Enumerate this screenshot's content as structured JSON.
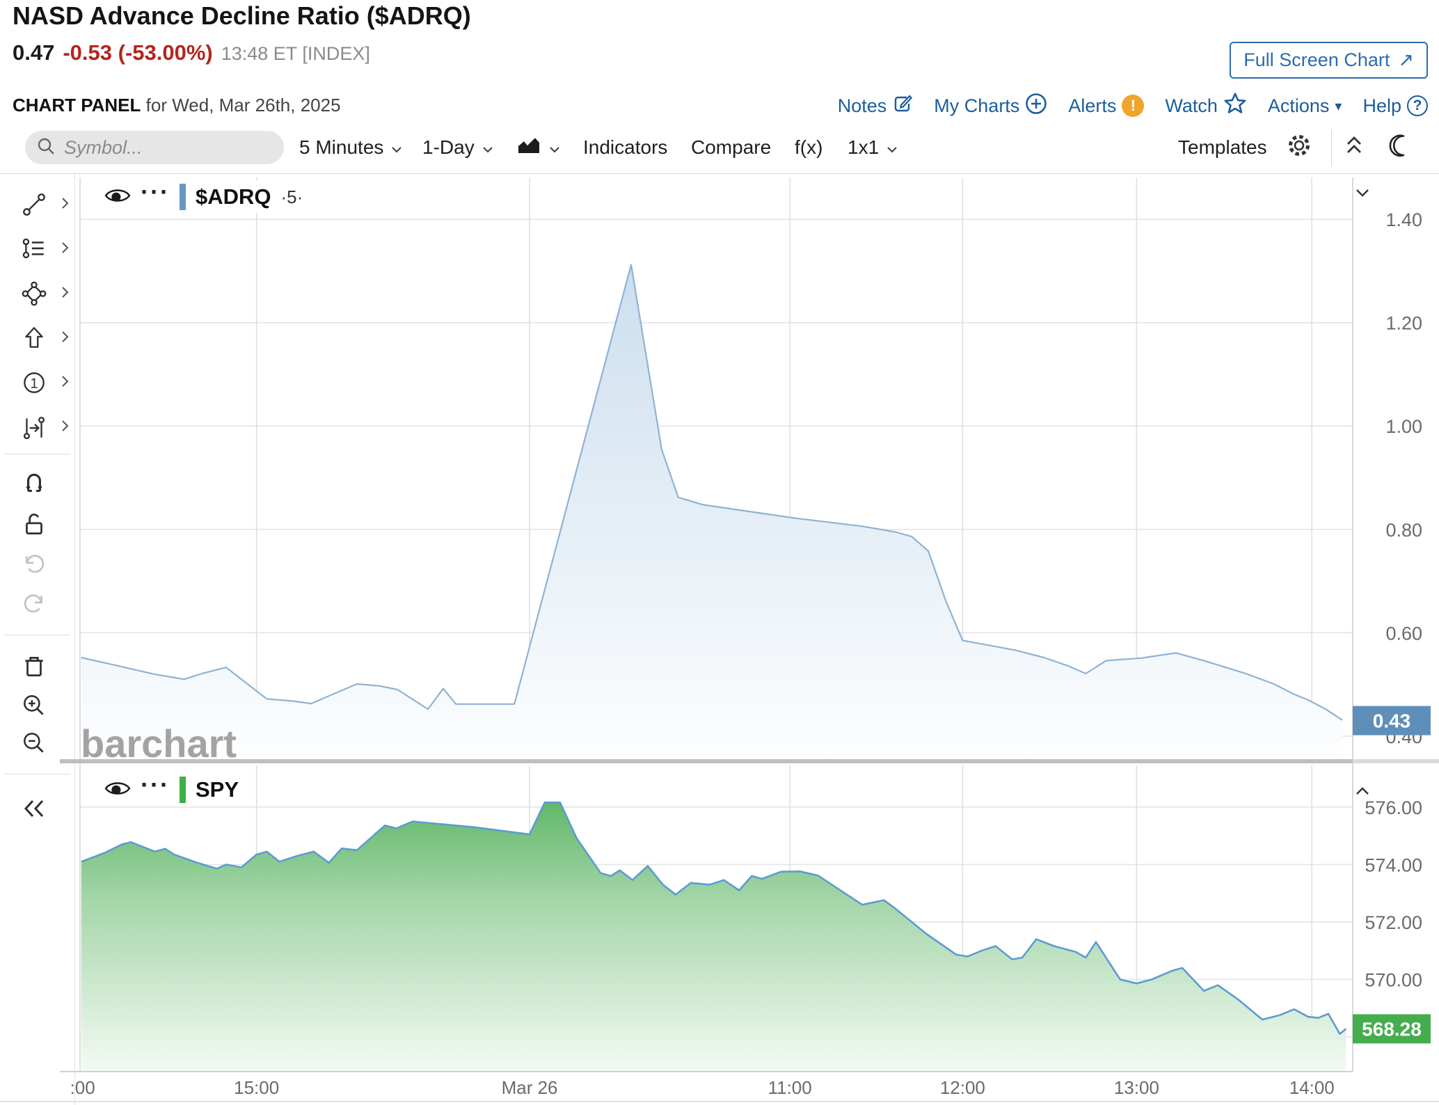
{
  "header": {
    "title": "NASD Advance Decline Ratio ($ADRQ)",
    "last": "0.47",
    "change": "-0.53 (-53.00%)",
    "quote_time": "13:48 ET [INDEX]",
    "full_screen_label": "Full Screen Chart",
    "full_screen_icon": "↗"
  },
  "panel_bar": {
    "label": "CHART PANEL",
    "date": "for Wed, Mar 26th, 2025",
    "links": [
      {
        "label": "Notes",
        "icon": "notes-icon"
      },
      {
        "label": "My Charts",
        "icon": "plus-circle-icon"
      },
      {
        "label": "Alerts",
        "icon": "alert-badge-icon",
        "glyph": "!"
      },
      {
        "label": "Watch",
        "icon": "star-icon"
      },
      {
        "label": "Actions",
        "icon": "caret-down-icon",
        "glyph": "▾"
      },
      {
        "label": "Help",
        "icon": "question-circle-icon",
        "glyph": "?"
      }
    ]
  },
  "toolbar": {
    "symbol_placeholder": "Symbol...",
    "frequency": "5 Minutes",
    "range": "1-Day",
    "indicators": "Indicators",
    "compare": "Compare",
    "fx": "f(x)",
    "grid": "1x1",
    "templates": "Templates"
  },
  "sidebar_tools": [
    "trend-line",
    "trend-channel",
    "shape",
    "arrow-annotation",
    "number-annotation",
    "measure",
    "magnet-mode",
    "unlock",
    "undo",
    "redo",
    "delete-drawings",
    "zoom-in",
    "zoom-out",
    "collapse-sidebar"
  ],
  "icon_glyphs": {
    "number_tool": "1"
  },
  "watermark": "barchart",
  "colors": {
    "negative": "#b3251e",
    "link_blue": "#1b5d9c",
    "alert_orange": "#f1a42c",
    "adrq_line": "#8fb2d4",
    "adrq_badge": "#5e8fba",
    "spy_line": "#5d9bd3",
    "spy_badge": "#45ad4e"
  },
  "x_axis": {
    "labels": [
      ":00",
      "15:00",
      "Mar 26",
      "11:00",
      "12:00",
      "13:00",
      "14:00"
    ],
    "fracs": [
      0.002,
      0.139,
      0.354,
      0.559,
      0.695,
      0.832,
      0.97
    ]
  },
  "chart_data": [
    {
      "type": "area",
      "symbol": "$ADRQ",
      "pane": "upper",
      "legend": {
        "label": "$ADRQ",
        "suffix": "·5·",
        "dots": "···",
        "color": "#6697c4"
      },
      "title": "NASD Advance Decline Ratio 5-minute",
      "ylim": [
        0.35,
        1.481
      ],
      "y_ticks": [
        {
          "v": 1.4,
          "label": "1.40"
        },
        {
          "v": 1.2,
          "label": "1.20"
        },
        {
          "v": 1.0,
          "label": "1.00"
        },
        {
          "v": 0.8,
          "label": "0.80"
        },
        {
          "v": 0.6,
          "label": "0.60"
        },
        {
          "v": 0.4,
          "label": "0.40"
        }
      ],
      "last_price": "0.43",
      "last_value": 0.43,
      "line_color": "#8fb2d4",
      "badge_color": "#5e8fba",
      "fill_stops": [
        [
          "0",
          "#c3d9ec"
        ],
        [
          "0.5",
          "#e0ebf4"
        ],
        [
          "1",
          "#fdfeff"
        ]
      ],
      "points": [
        [
          0.001,
          0.552
        ],
        [
          0.03,
          0.536
        ],
        [
          0.058,
          0.52
        ],
        [
          0.082,
          0.51
        ],
        [
          0.096,
          0.521
        ],
        [
          0.115,
          0.533
        ],
        [
          0.147,
          0.472
        ],
        [
          0.167,
          0.468
        ],
        [
          0.182,
          0.463
        ],
        [
          0.218,
          0.501
        ],
        [
          0.236,
          0.497
        ],
        [
          0.25,
          0.49
        ],
        [
          0.274,
          0.452
        ],
        [
          0.286,
          0.492
        ],
        [
          0.296,
          0.462
        ],
        [
          0.342,
          0.462
        ],
        [
          0.434,
          1.312
        ],
        [
          0.458,
          0.955
        ],
        [
          0.471,
          0.862
        ],
        [
          0.49,
          0.848
        ],
        [
          0.523,
          0.836
        ],
        [
          0.562,
          0.822
        ],
        [
          0.616,
          0.806
        ],
        [
          0.642,
          0.795
        ],
        [
          0.655,
          0.786
        ],
        [
          0.668,
          0.758
        ],
        [
          0.682,
          0.66
        ],
        [
          0.695,
          0.585
        ],
        [
          0.715,
          0.576
        ],
        [
          0.737,
          0.566
        ],
        [
          0.759,
          0.552
        ],
        [
          0.778,
          0.536
        ],
        [
          0.792,
          0.521
        ],
        [
          0.808,
          0.546
        ],
        [
          0.836,
          0.551
        ],
        [
          0.863,
          0.561
        ],
        [
          0.885,
          0.546
        ],
        [
          0.918,
          0.521
        ],
        [
          0.94,
          0.501
        ],
        [
          0.956,
          0.481
        ],
        [
          0.967,
          0.47
        ],
        [
          0.981,
          0.452
        ],
        [
          0.994,
          0.431
        ]
      ]
    },
    {
      "type": "area",
      "symbol": "SPY",
      "pane": "lower",
      "legend": {
        "label": "SPY",
        "suffix": "",
        "dots": "···",
        "color": "#3fae49"
      },
      "title": "SPY comparison",
      "ylim": [
        566.79,
        577.45
      ],
      "y_ticks": [
        {
          "v": 576.0,
          "label": "576.00"
        },
        {
          "v": 574.0,
          "label": "574.00"
        },
        {
          "v": 572.0,
          "label": "572.00"
        },
        {
          "v": 570.0,
          "label": "570.00"
        },
        {
          "v": 568.0,
          "label": ""
        }
      ],
      "last_price": "568.28",
      "last_value": 568.28,
      "line_color": "#5d9bd3",
      "badge_color": "#45ad4e",
      "fill_stops": [
        [
          "0",
          "#49ac51"
        ],
        [
          "0.45",
          "#a6d7aa"
        ],
        [
          "1",
          "#f4faf4"
        ]
      ],
      "points": [
        [
          0.001,
          574.1
        ],
        [
          0.019,
          574.4
        ],
        [
          0.033,
          574.7
        ],
        [
          0.04,
          574.78
        ],
        [
          0.059,
          574.45
        ],
        [
          0.067,
          574.55
        ],
        [
          0.074,
          574.35
        ],
        [
          0.093,
          574.05
        ],
        [
          0.103,
          573.92
        ],
        [
          0.108,
          573.86
        ],
        [
          0.115,
          574.0
        ],
        [
          0.127,
          573.9
        ],
        [
          0.139,
          574.35
        ],
        [
          0.147,
          574.45
        ],
        [
          0.157,
          574.1
        ],
        [
          0.171,
          574.3
        ],
        [
          0.184,
          574.45
        ],
        [
          0.196,
          574.06
        ],
        [
          0.206,
          574.56
        ],
        [
          0.218,
          574.5
        ],
        [
          0.24,
          575.36
        ],
        [
          0.249,
          575.26
        ],
        [
          0.262,
          575.5
        ],
        [
          0.31,
          575.3
        ],
        [
          0.354,
          575.05
        ],
        [
          0.366,
          576.16
        ],
        [
          0.378,
          576.16
        ],
        [
          0.391,
          574.92
        ],
        [
          0.41,
          573.7
        ],
        [
          0.418,
          573.6
        ],
        [
          0.425,
          573.8
        ],
        [
          0.435,
          573.46
        ],
        [
          0.447,
          573.95
        ],
        [
          0.459,
          573.3
        ],
        [
          0.469,
          572.95
        ],
        [
          0.481,
          573.36
        ],
        [
          0.496,
          573.3
        ],
        [
          0.507,
          573.46
        ],
        [
          0.519,
          573.1
        ],
        [
          0.529,
          573.6
        ],
        [
          0.537,
          573.5
        ],
        [
          0.552,
          573.75
        ],
        [
          0.567,
          573.76
        ],
        [
          0.581,
          573.62
        ],
        [
          0.592,
          573.3
        ],
        [
          0.616,
          572.6
        ],
        [
          0.633,
          572.76
        ],
        [
          0.641,
          572.5
        ],
        [
          0.655,
          572.0
        ],
        [
          0.666,
          571.6
        ],
        [
          0.69,
          570.86
        ],
        [
          0.699,
          570.8
        ],
        [
          0.71,
          571.0
        ],
        [
          0.721,
          571.16
        ],
        [
          0.734,
          570.7
        ],
        [
          0.742,
          570.76
        ],
        [
          0.753,
          571.4
        ],
        [
          0.767,
          571.16
        ],
        [
          0.784,
          570.96
        ],
        [
          0.792,
          570.76
        ],
        [
          0.8,
          571.3
        ],
        [
          0.819,
          570.0
        ],
        [
          0.832,
          569.86
        ],
        [
          0.844,
          570.0
        ],
        [
          0.86,
          570.3
        ],
        [
          0.868,
          570.4
        ],
        [
          0.885,
          569.6
        ],
        [
          0.896,
          569.8
        ],
        [
          0.912,
          569.3
        ],
        [
          0.931,
          568.6
        ],
        [
          0.945,
          568.76
        ],
        [
          0.956,
          568.96
        ],
        [
          0.967,
          568.7
        ],
        [
          0.975,
          568.66
        ],
        [
          0.983,
          568.8
        ],
        [
          0.992,
          568.1
        ],
        [
          0.997,
          568.28
        ]
      ]
    }
  ]
}
